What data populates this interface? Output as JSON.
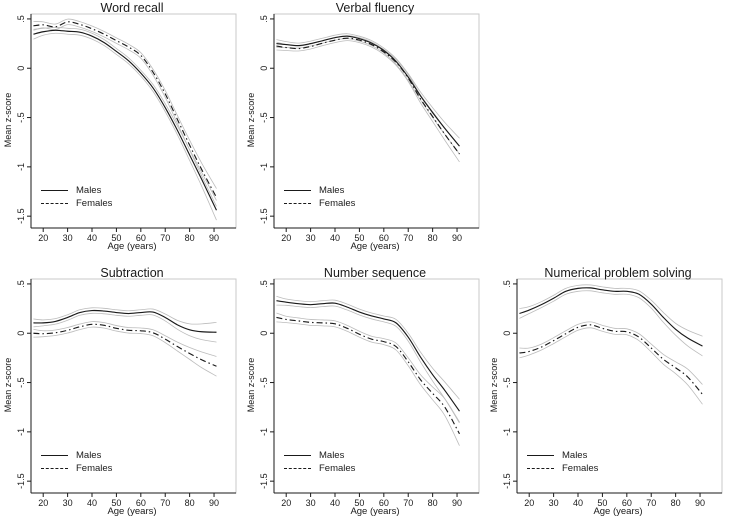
{
  "page": {
    "background": "#ffffff"
  },
  "chart_data": {
    "type": "line",
    "xlabel": "Age (years)",
    "ylabel": "Mean z-score",
    "x_ticks": [
      20,
      30,
      40,
      50,
      60,
      70,
      80,
      90
    ],
    "y_ticks": [
      {
        "label": ".5",
        "value": 0.5
      },
      {
        "label": "0",
        "value": 0
      },
      {
        "label": "-.5",
        "value": -0.5
      },
      {
        "label": "-1",
        "value": -1
      },
      {
        "label": "-1.5",
        "value": -1.5
      }
    ],
    "xlim": [
      15,
      99
    ],
    "ylim": [
      -1.62,
      0.55
    ],
    "grid": false,
    "legend": {
      "males": "Males",
      "females": "Females",
      "position": "bottom-left"
    },
    "colors": {
      "line": "#1a1a1a",
      "ci": "#bcbcbc",
      "frame": "#c9c9c9",
      "axis": "#1a1a1a"
    },
    "ages": [
      16,
      20,
      25,
      30,
      35,
      40,
      45,
      50,
      55,
      60,
      65,
      70,
      75,
      80,
      85,
      91
    ],
    "charts": [
      {
        "id": "word-recall",
        "title": "Word recall",
        "series": [
          {
            "name": "Males",
            "style": "solid",
            "values": [
              0.345,
              0.37,
              0.385,
              0.375,
              0.365,
              0.325,
              0.26,
              0.17,
              0.075,
              -0.05,
              -0.2,
              -0.4,
              -0.63,
              -0.88,
              -1.13,
              -1.44
            ],
            "ci": [
              0.05,
              0.035,
              0.03,
              0.03,
              0.03,
              0.03,
              0.03,
              0.03,
              0.03,
              0.03,
              0.035,
              0.04,
              0.045,
              0.055,
              0.07,
              0.1
            ]
          },
          {
            "name": "Females",
            "style": "dashed",
            "values": [
              0.43,
              0.44,
              0.42,
              0.47,
              0.445,
              0.4,
              0.345,
              0.28,
              0.215,
              0.13,
              -0.04,
              -0.26,
              -0.52,
              -0.78,
              -1.03,
              -1.31
            ],
            "ci": [
              0.045,
              0.03,
              0.028,
              0.028,
              0.028,
              0.028,
              0.028,
              0.028,
              0.028,
              0.028,
              0.03,
              0.035,
              0.04,
              0.05,
              0.065,
              0.09
            ]
          }
        ]
      },
      {
        "id": "verbal-fluency",
        "title": "Verbal fluency",
        "series": [
          {
            "name": "Males",
            "style": "solid",
            "values": [
              0.25,
              0.24,
              0.23,
              0.25,
              0.28,
              0.31,
              0.325,
              0.3,
              0.255,
              0.18,
              0.07,
              -0.09,
              -0.28,
              -0.45,
              -0.61,
              -0.79
            ],
            "ci": [
              0.04,
              0.03,
              0.025,
              0.025,
              0.025,
              0.025,
              0.025,
              0.025,
              0.025,
              0.025,
              0.03,
              0.035,
              0.04,
              0.05,
              0.06,
              0.08
            ]
          },
          {
            "name": "Females",
            "style": "dashed",
            "values": [
              0.225,
              0.21,
              0.2,
              0.22,
              0.255,
              0.285,
              0.305,
              0.285,
              0.24,
              0.165,
              0.06,
              -0.1,
              -0.31,
              -0.49,
              -0.67,
              -0.87
            ],
            "ci": [
              0.04,
              0.03,
              0.025,
              0.025,
              0.025,
              0.025,
              0.025,
              0.025,
              0.025,
              0.025,
              0.03,
              0.035,
              0.04,
              0.05,
              0.06,
              0.08
            ]
          }
        ]
      },
      {
        "id": "subtraction",
        "title": "Subtraction",
        "series": [
          {
            "name": "Males",
            "style": "solid",
            "values": [
              0.105,
              0.105,
              0.12,
              0.16,
              0.21,
              0.23,
              0.225,
              0.21,
              0.2,
              0.21,
              0.215,
              0.16,
              0.085,
              0.035,
              0.015,
              0.01
            ],
            "ci": [
              0.04,
              0.03,
              0.028,
              0.028,
              0.028,
              0.028,
              0.028,
              0.028,
              0.028,
              0.028,
              0.03,
              0.035,
              0.045,
              0.06,
              0.08,
              0.1
            ]
          },
          {
            "name": "Females",
            "style": "dashed",
            "values": [
              0.0,
              -0.005,
              0.005,
              0.03,
              0.065,
              0.09,
              0.08,
              0.05,
              0.03,
              0.025,
              0.005,
              -0.06,
              -0.135,
              -0.205,
              -0.27,
              -0.335
            ],
            "ci": [
              0.04,
              0.03,
              0.028,
              0.028,
              0.028,
              0.028,
              0.028,
              0.028,
              0.028,
              0.028,
              0.03,
              0.035,
              0.045,
              0.06,
              0.08,
              0.1
            ]
          }
        ]
      },
      {
        "id": "number-sequence",
        "title": "Number sequence",
        "series": [
          {
            "name": "Males",
            "style": "solid",
            "values": [
              0.33,
              0.315,
              0.3,
              0.29,
              0.3,
              0.305,
              0.265,
              0.215,
              0.175,
              0.145,
              0.105,
              -0.04,
              -0.24,
              -0.42,
              -0.58,
              -0.79
            ],
            "ci": [
              0.045,
              0.032,
              0.03,
              0.03,
              0.03,
              0.03,
              0.03,
              0.03,
              0.03,
              0.03,
              0.035,
              0.04,
              0.05,
              0.065,
              0.085,
              0.12
            ]
          },
          {
            "name": "Females",
            "style": "dashed",
            "values": [
              0.16,
              0.14,
              0.125,
              0.11,
              0.105,
              0.095,
              0.05,
              -0.01,
              -0.06,
              -0.085,
              -0.135,
              -0.29,
              -0.47,
              -0.61,
              -0.75,
              -1.02
            ],
            "ci": [
              0.045,
              0.032,
              0.03,
              0.03,
              0.03,
              0.03,
              0.03,
              0.03,
              0.03,
              0.03,
              0.035,
              0.04,
              0.05,
              0.065,
              0.085,
              0.12
            ]
          }
        ]
      },
      {
        "id": "numerical-problem-solving",
        "title": "Numerical problem solving",
        "series": [
          {
            "name": "Males",
            "style": "solid",
            "values": [
              0.2,
              0.235,
              0.29,
              0.355,
              0.425,
              0.455,
              0.46,
              0.44,
              0.425,
              0.425,
              0.395,
              0.295,
              0.16,
              0.04,
              -0.05,
              -0.13
            ],
            "ci": [
              0.05,
              0.035,
              0.03,
              0.03,
              0.03,
              0.03,
              0.03,
              0.03,
              0.03,
              0.03,
              0.035,
              0.04,
              0.05,
              0.06,
              0.08,
              0.1
            ]
          },
          {
            "name": "Females",
            "style": "dashed",
            "values": [
              -0.2,
              -0.185,
              -0.14,
              -0.075,
              -0.005,
              0.06,
              0.085,
              0.05,
              0.02,
              0.015,
              -0.04,
              -0.15,
              -0.265,
              -0.35,
              -0.445,
              -0.62
            ],
            "ci": [
              0.05,
              0.035,
              0.03,
              0.03,
              0.03,
              0.03,
              0.03,
              0.03,
              0.03,
              0.03,
              0.035,
              0.04,
              0.05,
              0.06,
              0.08,
              0.1
            ]
          }
        ]
      }
    ]
  }
}
